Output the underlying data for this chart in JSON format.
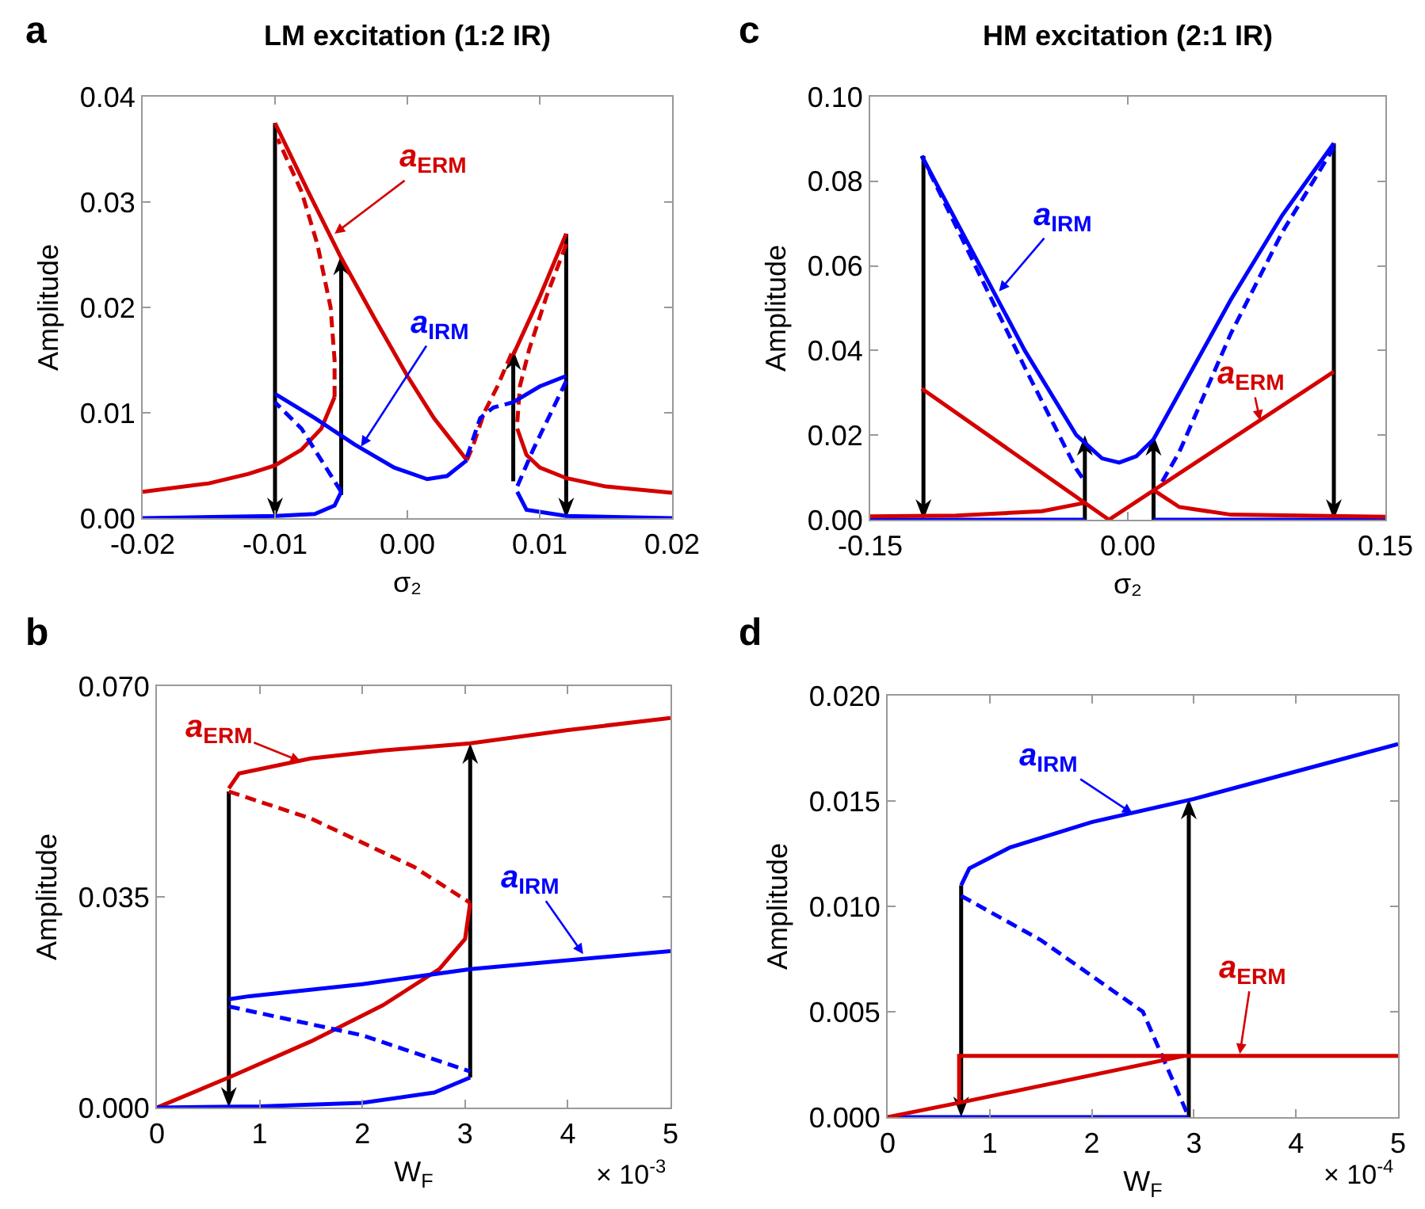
{
  "chart_data": [
    {
      "type": "line",
      "title": "LM excitation (1:2 IR)",
      "xlabel": "σ₂",
      "ylabel": "Amplitude",
      "annotations": [
        "a",
        {
          "text": "a$_{ERM}$",
          "x": -0.0055,
          "y": 0.027
        },
        {
          "text": "a$_{IRM}$",
          "x": -0.0035,
          "y": 0.0068
        }
      ],
      "xlim": [
        -0.02,
        0.02
      ],
      "ylim": [
        0,
        0.04
      ],
      "xticks": [
        {
          "value": -0.02,
          "label": "-0.02"
        },
        {
          "value": -0.01,
          "label": "-0.01"
        },
        {
          "value": 0,
          "label": "0.00"
        },
        {
          "value": 0.01,
          "label": "0.01"
        },
        {
          "value": 0.02,
          "label": "0.02"
        }
      ],
      "yticks": [
        {
          "value": 0,
          "label": "0.00"
        },
        {
          "value": 0.01,
          "label": "0.01"
        },
        {
          "value": 0.02,
          "label": "0.02"
        },
        {
          "value": 0.03,
          "label": "0.03"
        },
        {
          "value": 0.04,
          "label": "0.04"
        }
      ],
      "series": [
        {
          "color": "#d40000",
          "x": [
            -0.02,
            -0.015,
            -0.012,
            -0.01,
            -0.008,
            -0.0065,
            -0.0055
          ],
          "values": [
            0.0025,
            0.0033,
            0.0042,
            0.005,
            0.0065,
            0.0085,
            0.0115
          ]
        },
        {
          "color": "#d40000",
          "line_style": "dashed",
          "x": [
            -0.0055,
            -0.0055,
            -0.0058,
            -0.0068,
            -0.008,
            -0.0098
          ],
          "values": [
            0.0115,
            0.015,
            0.02,
            0.026,
            0.031,
            0.036
          ]
        },
        {
          "color": "#d40000",
          "x": [
            -0.01,
            -0.0075,
            -0.005,
            -0.0025,
            0,
            0.002,
            0.0045
          ],
          "values": [
            0.0375,
            0.031,
            0.0247,
            0.019,
            0.0135,
            0.0095,
            0.0055
          ]
        },
        {
          "color": "#d40000",
          "line_style": "dashed",
          "x": [
            0.0045,
            0.005,
            0.0058,
            0.0068,
            0.008
          ],
          "values": [
            0.0055,
            0.007,
            0.01,
            0.0125,
            0.016
          ]
        },
        {
          "color": "#d40000",
          "x": [
            0.008,
            0.01,
            0.012
          ],
          "values": [
            0.0155,
            0.021,
            0.027
          ]
        },
        {
          "color": "#d40000",
          "line_style": "dashed",
          "x": [
            0.012,
            0.0105,
            0.0092,
            0.0085,
            0.0083
          ],
          "values": [
            0.026,
            0.021,
            0.016,
            0.0125,
            0.009
          ]
        },
        {
          "color": "#d40000",
          "x": [
            0.0083,
            0.009,
            0.01,
            0.012,
            0.015,
            0.02
          ],
          "values": [
            0.0085,
            0.006,
            0.0048,
            0.0038,
            0.003,
            0.0024
          ]
        },
        {
          "color": "#0000ff",
          "x": [
            -0.02,
            -0.01,
            -0.007,
            -0.0055,
            -0.005
          ],
          "values": [
            0,
            0.0002,
            0.0004,
            0.0012,
            0.0025
          ]
        },
        {
          "color": "#0000ff",
          "line_style": "dashed",
          "x": [
            -0.005,
            -0.0065,
            -0.008,
            -0.01
          ],
          "values": [
            0.0025,
            0.0055,
            0.0085,
            0.011
          ]
        },
        {
          "color": "#0000ff",
          "x": [
            -0.01,
            -0.007,
            -0.004,
            -0.001,
            0.0015,
            0.003,
            0.0045
          ],
          "values": [
            0.0118,
            0.0095,
            0.007,
            0.0048,
            0.0037,
            0.004,
            0.0055
          ]
        },
        {
          "color": "#0000ff",
          "line_style": "dashed",
          "x": [
            0.0045,
            0.0055,
            0.0065,
            0.008
          ],
          "values": [
            0.0058,
            0.0095,
            0.0105,
            0.011
          ]
        },
        {
          "color": "#0000ff",
          "x": [
            0.008,
            0.01,
            0.012
          ],
          "values": [
            0.011,
            0.0125,
            0.0135
          ]
        },
        {
          "color": "#0000ff",
          "line_style": "dashed",
          "x": [
            0.012,
            0.0095,
            0.0083
          ],
          "values": [
            0.013,
            0.0065,
            0.003
          ]
        },
        {
          "color": "#0000ff",
          "x": [
            0.0083,
            0.009,
            0.012,
            0.02
          ],
          "values": [
            0.0025,
            0.0008,
            0.0002,
            0
          ]
        }
      ]
    },
    {
      "type": "line",
      "xlabel": "W$_{F}$",
      "ylabel": "Amplitude",
      "annotations": [
        "b",
        "× 10$^{-3}$",
        {
          "text": "a$_{ERM}$",
          "x": 1.4,
          "y": 0.0575
        },
        {
          "text": "a$_{IRM}$",
          "x": 4.15,
          "y": 0.0255
        }
      ],
      "xlim": [
        0,
        5
      ],
      "ylim": [
        0,
        0.07
      ],
      "xticks": [
        0,
        1,
        2,
        3,
        4,
        5
      ],
      "yticks": [
        {
          "value": 0,
          "label": "0.000"
        },
        {
          "value": 0.035,
          "label": "0.035"
        },
        {
          "value": 0.07,
          "label": "0.070"
        }
      ],
      "series": [
        {
          "color": "#d40000",
          "x": [
            0.7,
            0.8,
            1.5,
            2.2,
            3.05,
            4,
            5
          ],
          "values": [
            0.053,
            0.0555,
            0.058,
            0.0593,
            0.0605,
            0.0627,
            0.0647
          ]
        },
        {
          "color": "#d40000",
          "line_style": "dashed",
          "x": [
            0.7,
            1.5,
            2.5,
            3.05
          ],
          "values": [
            0.0525,
            0.048,
            0.04,
            0.034
          ]
        },
        {
          "color": "#d40000",
          "x": [
            0,
            0.7,
            1.5,
            2.2,
            2.75,
            3,
            3.05
          ],
          "values": [
            0,
            0.005,
            0.011,
            0.017,
            0.023,
            0.028,
            0.034
          ]
        },
        {
          "color": "#0000ff",
          "x": [
            0.7,
            0.9,
            2,
            3.05,
            5
          ],
          "values": [
            0.018,
            0.0185,
            0.0205,
            0.023,
            0.026
          ]
        },
        {
          "color": "#0000ff",
          "line_style": "dashed",
          "x": [
            0.7,
            2,
            3.05
          ],
          "values": [
            0.0168,
            0.012,
            0.006
          ]
        },
        {
          "color": "#0000ff",
          "x": [
            0,
            1,
            2,
            2.7,
            3.05
          ],
          "values": [
            0,
            0.0002,
            0.0008,
            0.0025,
            0.005
          ]
        }
      ]
    },
    {
      "type": "line",
      "title": "HM excitation (2:1 IR)",
      "xlabel": "σ₂",
      "ylabel": "Amplitude",
      "annotations": [
        "c",
        {
          "text": "a$_{IRM}$",
          "x": -0.075,
          "y": 0.054
        },
        {
          "text": "a$_{ERM}$",
          "x": 0.077,
          "y": 0.0235
        }
      ],
      "xlim": [
        -0.15,
        0.15
      ],
      "ylim": [
        0,
        0.1
      ],
      "xticks": [
        {
          "value": -0.15,
          "label": "-0.15"
        },
        {
          "value": 0,
          "label": "0.00"
        },
        {
          "value": 0.15,
          "label": "0.15"
        }
      ],
      "yticks": [
        {
          "value": 0,
          "label": "0.00"
        },
        {
          "value": 0.02,
          "label": "0.02"
        },
        {
          "value": 0.04,
          "label": "0.04"
        },
        {
          "value": 0.06,
          "label": "0.06"
        },
        {
          "value": 0.08,
          "label": "0.08"
        },
        {
          "value": 0.1,
          "label": "0.10"
        }
      ],
      "series": [
        {
          "color": "#0000ff",
          "x": [
            -0.12,
            -0.09,
            -0.06,
            -0.03,
            -0.015,
            -0.005,
            0.005,
            0.015,
            0.03,
            0.06,
            0.09,
            0.12
          ],
          "values": [
            0.086,
            0.063,
            0.04,
            0.02,
            0.0145,
            0.0135,
            0.015,
            0.019,
            0.03,
            0.052,
            0.072,
            0.089
          ]
        },
        {
          "color": "#0000ff",
          "line_style": "dashed",
          "x": [
            -0.12,
            -0.09,
            -0.06,
            -0.03,
            -0.025
          ],
          "values": [
            0.086,
            0.061,
            0.036,
            0.012,
            0.009
          ]
        },
        {
          "color": "#0000ff",
          "line_style": "dashed",
          "x": [
            0.02,
            0.03,
            0.06,
            0.09,
            0.12
          ],
          "values": [
            0.009,
            0.016,
            0.044,
            0.068,
            0.088
          ]
        },
        {
          "color": "#0000ff",
          "x": [
            -0.15,
            -0.025
          ],
          "values": [
            0,
            0
          ]
        },
        {
          "color": "#0000ff",
          "x": [
            0.015,
            0.15
          ],
          "values": [
            0,
            0
          ]
        },
        {
          "color": "#d40000",
          "x": [
            -0.12,
            -0.011,
            0.12
          ],
          "values": [
            0.031,
            0,
            0.035
          ]
        },
        {
          "color": "#d40000",
          "x": [
            -0.15,
            -0.1,
            -0.05,
            -0.025
          ],
          "values": [
            0.0008,
            0.001,
            0.002,
            0.004
          ]
        },
        {
          "color": "#d40000",
          "x": [
            0.015,
            0.03,
            0.06,
            0.15
          ],
          "values": [
            0.007,
            0.003,
            0.0012,
            0.0007
          ]
        }
      ]
    },
    {
      "type": "line",
      "xlabel": "W$_{F}$",
      "ylabel": "Amplitude",
      "annotations": [
        "d",
        "× 10$^{-4}$",
        {
          "text": "a$_{IRM}$",
          "x": 2.4,
          "y": 0.0144
        },
        {
          "text": "a$_{ERM}$",
          "x": 3.45,
          "y": 0.003
        }
      ],
      "xlim": [
        0,
        5
      ],
      "ylim": [
        0,
        0.02
      ],
      "xticks": [
        0,
        1,
        2,
        3,
        4,
        5
      ],
      "yticks": [
        {
          "value": 0,
          "label": "0.000"
        },
        {
          "value": 0.005,
          "label": "0.005"
        },
        {
          "value": 0.01,
          "label": "0.010"
        },
        {
          "value": 0.015,
          "label": "0.015"
        },
        {
          "value": 0.02,
          "label": "0.020"
        }
      ],
      "series": [
        {
          "color": "#0000ff",
          "x": [
            0.72,
            0.8,
            1.2,
            2,
            3,
            4,
            5
          ],
          "values": [
            0.011,
            0.0118,
            0.0128,
            0.014,
            0.0151,
            0.0164,
            0.0177
          ]
        },
        {
          "color": "#0000ff",
          "line_style": "dashed",
          "x": [
            0.72,
            1.5,
            2.5,
            2.95
          ],
          "values": [
            0.0105,
            0.0084,
            0.005,
            0
          ]
        },
        {
          "color": "#0000ff",
          "x": [
            0,
            2.95
          ],
          "values": [
            0,
            0
          ]
        },
        {
          "color": "#d40000",
          "x": [
            0,
            0.72,
            2.9
          ],
          "values": [
            0,
            0.0007,
            0.0029
          ]
        },
        {
          "color": "#d40000",
          "x": [
            0.7,
            0.7,
            5
          ],
          "values": [
            0.0007,
            0.0029,
            0.0029
          ]
        }
      ]
    }
  ]
}
